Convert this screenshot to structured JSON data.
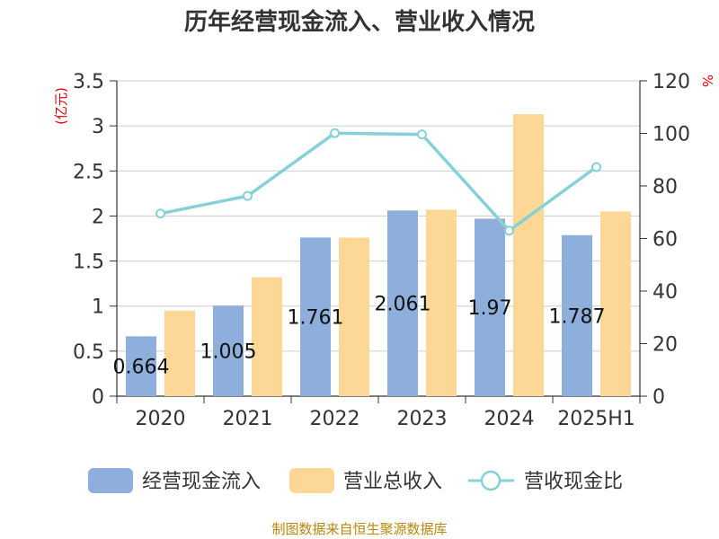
{
  "title": "历年经营现金流入、营业收入情况",
  "source": "制图数据来自恒生聚源数据库",
  "colors": {
    "cash_inflow": "#8eaedb",
    "revenue": "#fdd795",
    "ratio": "#86d1d6",
    "unit": "#e60000",
    "source": "#b8860b"
  },
  "chart_data": {
    "type": "bar",
    "title": "历年经营现金流入、营业收入情况",
    "categories": [
      "2020",
      "2021",
      "2022",
      "2023",
      "2024",
      "2025H1"
    ],
    "left_axis": {
      "unit": "(亿元)",
      "ylim": [
        0,
        3.5
      ],
      "ticks": [
        "0",
        "0.5",
        "1",
        "1.5",
        "2",
        "2.5",
        "3",
        "3.5"
      ]
    },
    "right_axis": {
      "unit": "%",
      "ylim": [
        0,
        120
      ],
      "ticks": [
        "0",
        "20",
        "40",
        "60",
        "80",
        "100",
        "120"
      ]
    },
    "grid": true,
    "legend_position": "bottom",
    "series": [
      {
        "name": "经营现金流入",
        "type": "bar",
        "axis": "left",
        "values": [
          0.664,
          1.005,
          1.761,
          2.061,
          1.97,
          1.787
        ],
        "labels": [
          "0.664",
          "1.005",
          "1.761",
          "2.061",
          "1.97",
          "1.787"
        ]
      },
      {
        "name": "营业总收入",
        "type": "bar",
        "axis": "left",
        "values": [
          0.95,
          1.32,
          1.76,
          2.07,
          3.13,
          2.05
        ]
      },
      {
        "name": "营收现金比",
        "type": "line",
        "axis": "right",
        "values": [
          69.5,
          76.2,
          100.1,
          99.6,
          63.0,
          87.2
        ]
      }
    ]
  }
}
